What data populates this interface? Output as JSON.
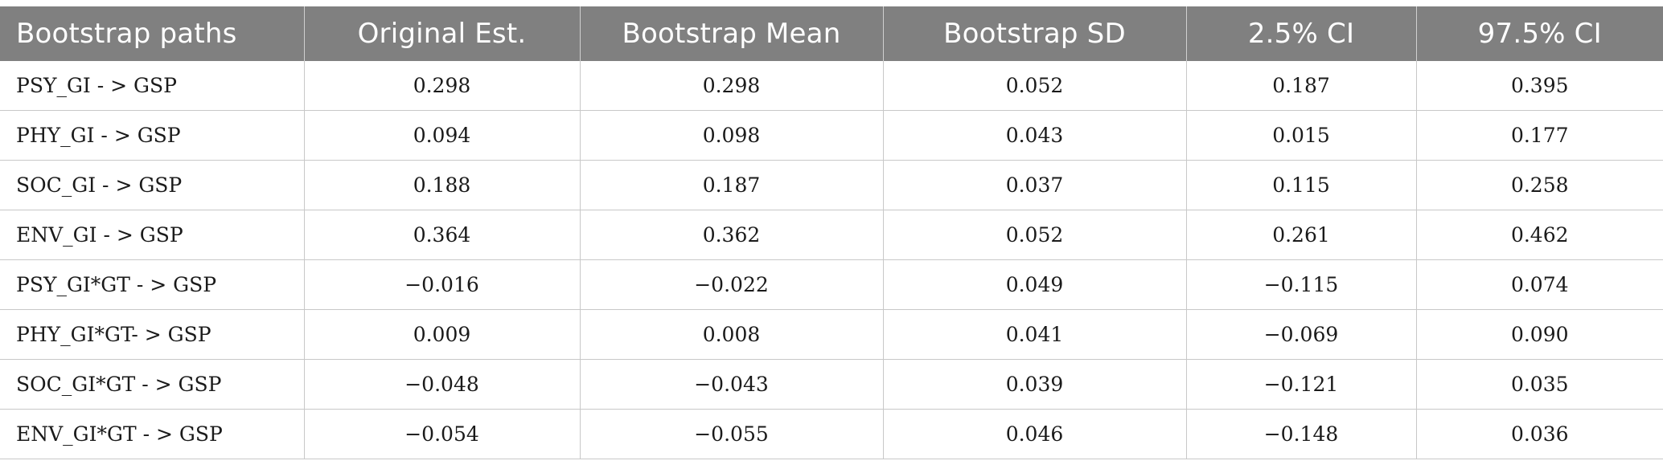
{
  "table": {
    "headers": [
      "Bootstrap paths",
      "Original Est.",
      "Bootstrap Mean",
      "Bootstrap SD",
      "2.5% CI",
      "97.5% CI"
    ],
    "rows": [
      [
        "PSY_GI - > GSP",
        "0.298",
        "0.298",
        "0.052",
        "0.187",
        "0.395"
      ],
      [
        "PHY_GI - > GSP",
        "0.094",
        "0.098",
        "0.043",
        "0.015",
        "0.177"
      ],
      [
        "SOC_GI - > GSP",
        "0.188",
        "0.187",
        "0.037",
        "0.115",
        "0.258"
      ],
      [
        "ENV_GI - > GSP",
        "0.364",
        "0.362",
        "0.052",
        "0.261",
        "0.462"
      ],
      [
        "PSY_GI*GT - > GSP",
        "−0.016",
        "−0.022",
        "0.049",
        "−0.115",
        "0.074"
      ],
      [
        "PHY_GI*GT- > GSP",
        "0.009",
        "0.008",
        "0.041",
        "−0.069",
        "0.090"
      ],
      [
        "SOC_GI*GT - > GSP",
        "−0.048",
        "−0.043",
        "0.039",
        "−0.121",
        "0.035"
      ],
      [
        "ENV_GI*GT - > GSP",
        "−0.054",
        "−0.055",
        "0.046",
        "−0.148",
        "0.036"
      ]
    ]
  }
}
